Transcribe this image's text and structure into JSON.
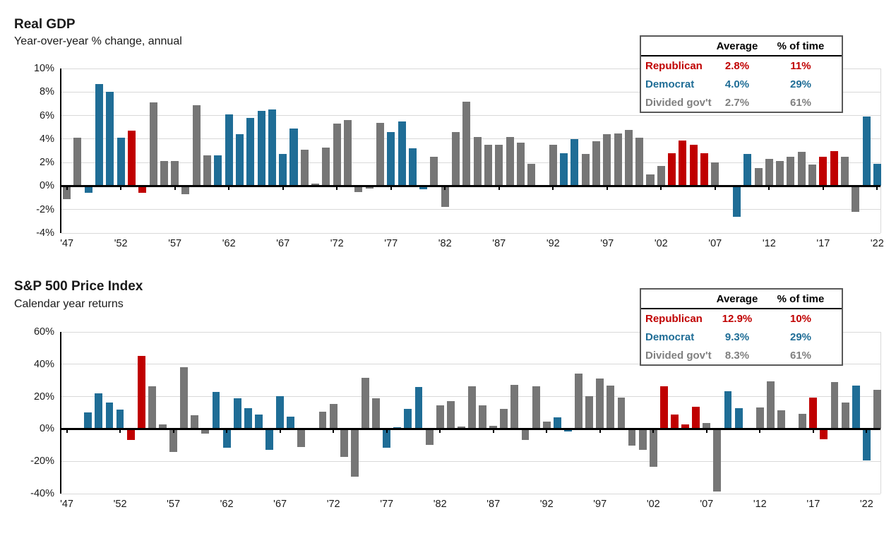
{
  "colors": {
    "republican": "#c00000",
    "democrat": "#1f6d96",
    "divided": "#767676",
    "legend_divided_text": "#808080",
    "gridline": "#d9d9d9",
    "axis": "#000000"
  },
  "party_colors": {
    "R": "#c00000",
    "D": "#1f6d96",
    "X": "#767676"
  },
  "chart_data": [
    {
      "type": "bar",
      "title": "Real GDP",
      "subtitle": "Year-over-year % change, annual",
      "ylabel": "",
      "ylim": [
        -4,
        10
      ],
      "yticks": [
        10,
        8,
        6,
        4,
        2,
        0,
        -2,
        -4
      ],
      "ytick_suffix": "%",
      "grid": true,
      "start_year": 1947,
      "xtick_step": 5,
      "xtick_labels": [
        "'47",
        "'52",
        "'57",
        "'62",
        "'67",
        "'72",
        "'77",
        "'82",
        "'87",
        "'92",
        "'97",
        "'02",
        "'07",
        "'12",
        "'17",
        "'22"
      ],
      "values": [
        -1.1,
        4.1,
        -0.6,
        8.7,
        8.0,
        4.1,
        4.7,
        -0.6,
        7.1,
        2.1,
        2.1,
        -0.7,
        6.9,
        2.6,
        2.6,
        6.1,
        4.4,
        5.8,
        6.4,
        6.5,
        2.7,
        4.9,
        3.1,
        0.2,
        3.3,
        5.3,
        5.6,
        -0.5,
        -0.2,
        5.4,
        4.6,
        5.5,
        3.2,
        -0.3,
        2.5,
        -1.8,
        4.6,
        7.2,
        4.2,
        3.5,
        3.5,
        4.2,
        3.7,
        1.9,
        -0.1,
        3.5,
        2.8,
        4.0,
        2.7,
        3.8,
        4.4,
        4.5,
        4.8,
        4.1,
        1.0,
        1.7,
        2.8,
        3.9,
        3.5,
        2.8,
        2.0,
        0.1,
        -2.6,
        2.7,
        1.5,
        2.3,
        2.1,
        2.5,
        2.9,
        1.8,
        2.5,
        3.0,
        2.5,
        -2.2,
        5.9,
        1.9
      ],
      "party": [
        "X",
        "X",
        "D",
        "D",
        "D",
        "D",
        "R",
        "R",
        "X",
        "X",
        "X",
        "X",
        "X",
        "X",
        "D",
        "D",
        "D",
        "D",
        "D",
        "D",
        "D",
        "D",
        "X",
        "X",
        "X",
        "X",
        "X",
        "X",
        "X",
        "X",
        "D",
        "D",
        "D",
        "D",
        "X",
        "X",
        "X",
        "X",
        "X",
        "X",
        "X",
        "X",
        "X",
        "X",
        "X",
        "X",
        "D",
        "D",
        "X",
        "X",
        "X",
        "X",
        "X",
        "X",
        "X",
        "X",
        "R",
        "R",
        "R",
        "R",
        "X",
        "X",
        "D",
        "D",
        "X",
        "X",
        "X",
        "X",
        "X",
        "X",
        "R",
        "R",
        "X",
        "X",
        "D",
        "D"
      ],
      "legend_position": "top-right",
      "legend_table": {
        "headers": [
          "Average",
          "% of time"
        ],
        "rows": [
          {
            "label": "Republican",
            "average": "2.8%",
            "pct_of_time": "11%",
            "color": "#c00000"
          },
          {
            "label": "Democrat",
            "average": "4.0%",
            "pct_of_time": "29%",
            "color": "#1f6d96"
          },
          {
            "label": "Divided gov't",
            "average": "2.7%",
            "pct_of_time": "61%",
            "color": "#808080"
          }
        ]
      }
    },
    {
      "type": "bar",
      "title": "S&P 500 Price Index",
      "subtitle": "Calendar year returns",
      "ylabel": "",
      "ylim": [
        -40,
        60
      ],
      "yticks": [
        60,
        40,
        20,
        0,
        -20,
        -40
      ],
      "ytick_suffix": "%",
      "grid": true,
      "start_year": 1947,
      "xtick_step": 5,
      "xtick_labels": [
        "'47",
        "'52",
        "'57",
        "'62",
        "'67",
        "'72",
        "'77",
        "'82",
        "'87",
        "'92",
        "'97",
        "'02",
        "'07",
        "'12",
        "'17",
        "'22"
      ],
      "values": [
        0.0,
        -0.7,
        10.3,
        21.8,
        16.5,
        11.8,
        -6.6,
        45.0,
        26.4,
        2.6,
        -14.3,
        38.1,
        8.5,
        -3.0,
        23.1,
        -11.8,
        18.9,
        13.0,
        9.1,
        -13.1,
        20.1,
        7.7,
        -11.4,
        0.1,
        10.8,
        15.6,
        -17.4,
        -29.7,
        31.5,
        19.1,
        -11.5,
        1.1,
        12.3,
        25.8,
        -9.7,
        14.8,
        17.3,
        1.4,
        26.3,
        14.6,
        2.0,
        12.4,
        27.3,
        -6.6,
        26.3,
        4.5,
        7.1,
        -1.5,
        34.1,
        20.3,
        31.0,
        26.7,
        19.5,
        -10.1,
        -13.0,
        -23.4,
        26.4,
        9.0,
        3.0,
        13.6,
        3.5,
        -38.5,
        23.5,
        12.8,
        0.0,
        13.4,
        29.6,
        11.4,
        -0.7,
        9.5,
        19.4,
        -6.2,
        28.9,
        16.3,
        26.9,
        -19.4,
        24.2
      ],
      "party": [
        "X",
        "X",
        "D",
        "D",
        "D",
        "D",
        "R",
        "R",
        "X",
        "X",
        "X",
        "X",
        "X",
        "X",
        "D",
        "D",
        "D",
        "D",
        "D",
        "D",
        "D",
        "D",
        "X",
        "X",
        "X",
        "X",
        "X",
        "X",
        "X",
        "X",
        "D",
        "D",
        "D",
        "D",
        "X",
        "X",
        "X",
        "X",
        "X",
        "X",
        "X",
        "X",
        "X",
        "X",
        "X",
        "X",
        "D",
        "D",
        "X",
        "X",
        "X",
        "X",
        "X",
        "X",
        "X",
        "X",
        "R",
        "R",
        "R",
        "R",
        "X",
        "X",
        "D",
        "D",
        "X",
        "X",
        "X",
        "X",
        "X",
        "X",
        "R",
        "R",
        "X",
        "X",
        "D",
        "D",
        "X"
      ],
      "legend_position": "top-right",
      "legend_table": {
        "headers": [
          "Average",
          "% of time"
        ],
        "rows": [
          {
            "label": "Republican",
            "average": "12.9%",
            "pct_of_time": "10%",
            "color": "#c00000"
          },
          {
            "label": "Democrat",
            "average": "9.3%",
            "pct_of_time": "29%",
            "color": "#1f6d96"
          },
          {
            "label": "Divided gov't",
            "average": "8.3%",
            "pct_of_time": "61%",
            "color": "#808080"
          }
        ]
      }
    }
  ]
}
